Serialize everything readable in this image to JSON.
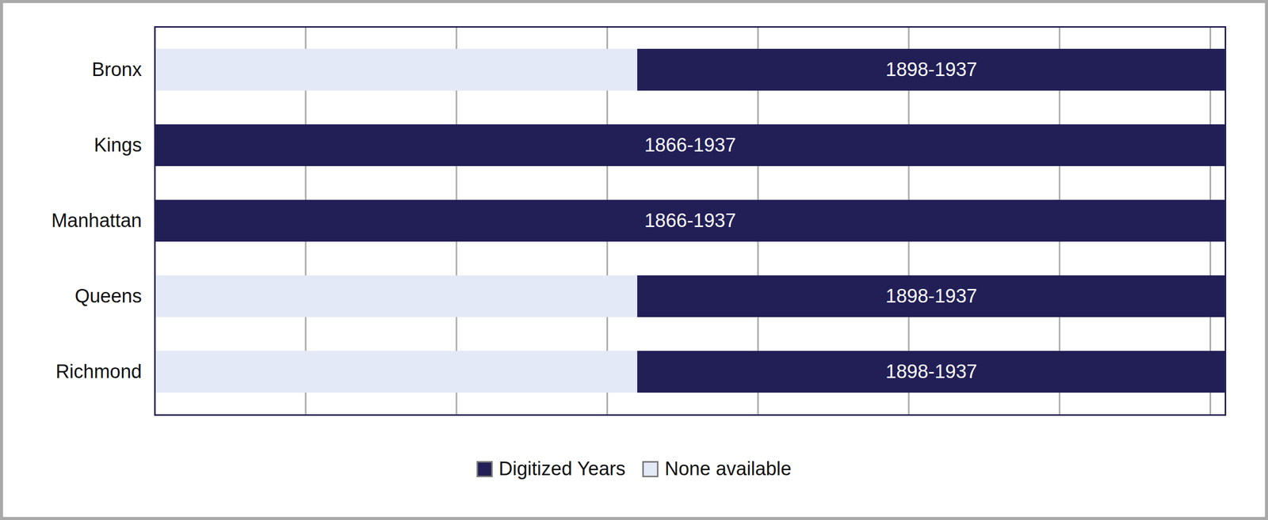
{
  "chart_data": {
    "type": "bar",
    "orientation": "horizontal",
    "categories": [
      "Bronx",
      "Kings",
      "Manhattan",
      "Queens",
      "Richmond"
    ],
    "xlim": [
      1866,
      1937
    ],
    "xticks": [
      1866,
      1876,
      1886,
      1896,
      1906,
      1916,
      1926,
      1936
    ],
    "tick_labels": "y",
    "grid": true,
    "legend": "bottom",
    "data_labels": true,
    "series": [
      {
        "name": "Digitized Years",
        "color": "#221f57",
        "values": [
          [
            1898,
            1937
          ],
          [
            1866,
            1937
          ],
          [
            1866,
            1937
          ],
          [
            1898,
            1937
          ],
          [
            1898,
            1937
          ]
        ],
        "value_labels": [
          "1898-1937",
          "1866-1937",
          "1866-1937",
          "1898-1937",
          "1898-1937"
        ]
      },
      {
        "name": "None available",
        "color": "#e4e9f7",
        "values": [
          [
            1866,
            1898
          ],
          null,
          null,
          [
            1866,
            1898
          ],
          [
            1866,
            1898
          ]
        ]
      }
    ]
  }
}
